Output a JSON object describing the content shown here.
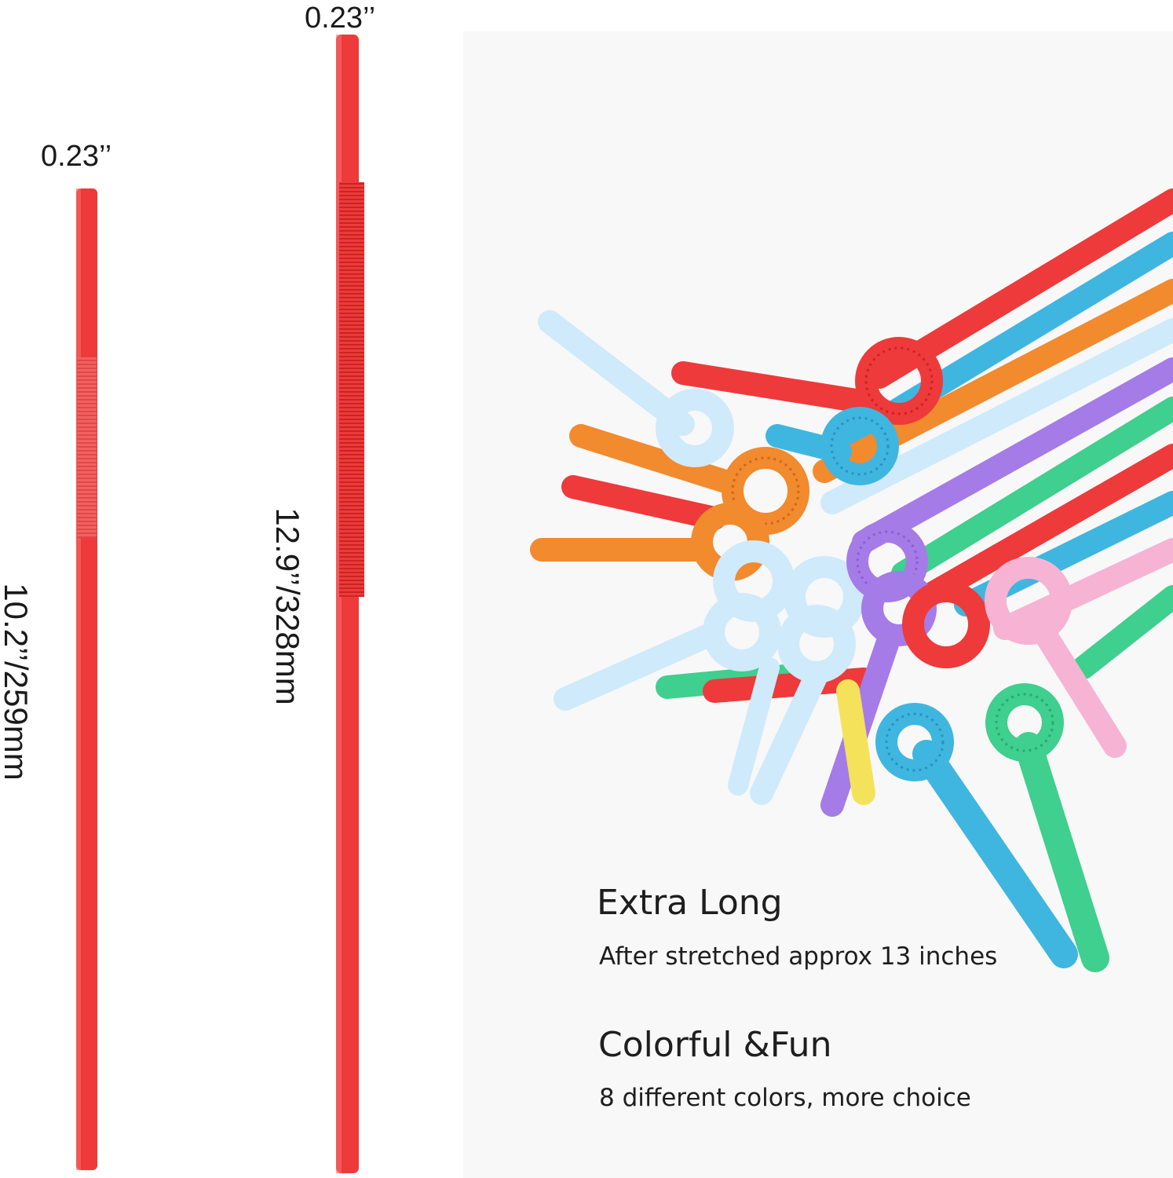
{
  "measurements": {
    "short_straw": {
      "diameter": "0.23’’",
      "length": "10.2’’/259mm"
    },
    "long_straw": {
      "diameter": "0.23’’",
      "length": "12.9’’/328mm"
    }
  },
  "features": [
    {
      "title": "Extra Long",
      "description": "After stretched approx 13 inches"
    },
    {
      "title": "Colorful &Fun",
      "description": "8 different colors, more choice"
    }
  ],
  "colors": {
    "straw_red": "#ee3a3a",
    "orange": "#f28a2e",
    "blue": "#3fb6e0",
    "green": "#3fcf8e",
    "purple": "#a57be8",
    "pink": "#f6b3d3",
    "light_blue": "#cfeafa",
    "yellow": "#f4e25b",
    "background": "#ffffff",
    "photo_background": "#f8f8f8"
  }
}
